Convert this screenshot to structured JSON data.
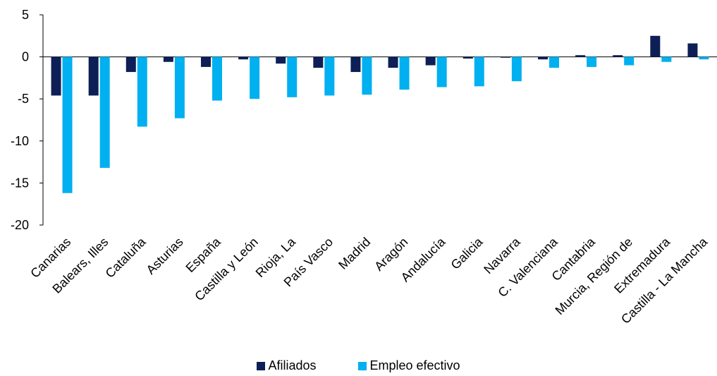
{
  "chart_data": {
    "type": "bar",
    "categories": [
      "Canarias",
      "Balears, Illes",
      "Cataluña",
      "Asturias",
      "España",
      "Castilla y León",
      "Rioja, La",
      "País Vasco",
      "Madrid",
      "Aragón",
      "Andalucía",
      "Galicia",
      "Navarra",
      "C. Valenciana",
      "Cantabria",
      "Murcia, Región de",
      "Extremadura",
      "Castilla - La Mancha"
    ],
    "series": [
      {
        "name": "Afiliados",
        "color": "#0d1f56",
        "values": [
          -4.6,
          -4.6,
          -1.8,
          -0.6,
          -1.2,
          -0.3,
          -0.8,
          -1.3,
          -1.8,
          -1.3,
          -1.0,
          -0.2,
          -0.1,
          -0.3,
          0.2,
          0.2,
          2.5,
          1.6
        ]
      },
      {
        "name": "Empleo efectivo",
        "color": "#00b0f0",
        "values": [
          -16.2,
          -13.2,
          -8.3,
          -7.3,
          -5.2,
          -5.0,
          -4.8,
          -4.6,
          -4.5,
          -3.9,
          -3.6,
          -3.5,
          -2.9,
          -1.3,
          -1.2,
          -1.0,
          -0.6,
          -0.3
        ]
      }
    ],
    "yticks": [
      5,
      0,
      -5,
      -10,
      -15,
      -20
    ],
    "ylim": [
      -20,
      5
    ],
    "grid": false,
    "legend": "bottom"
  }
}
